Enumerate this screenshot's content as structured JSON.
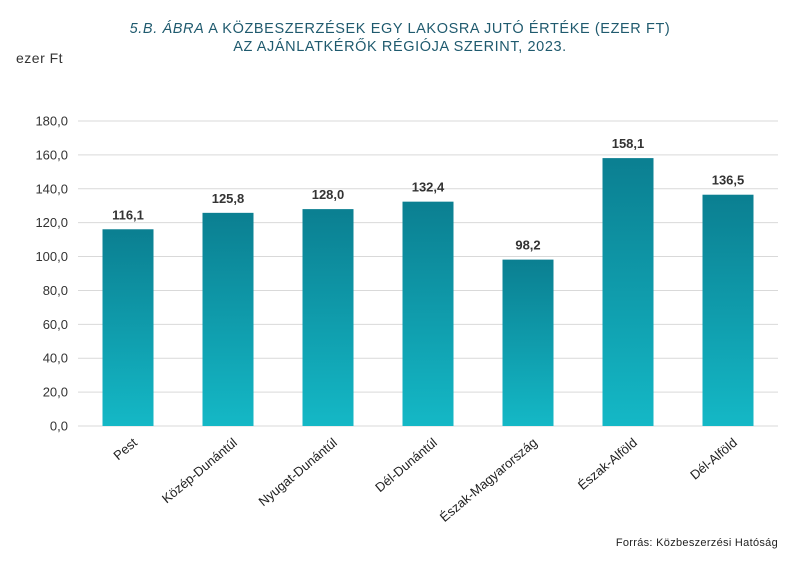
{
  "title": {
    "figure": "5.B. ÁBRA",
    "line1": "A KÖZBESZERZÉSEK EGY LAKOSRA JUTÓ ÉRTÉKE (EZER FT)",
    "line2": "AZ AJÁNLATKÉRŐK RÉGIÓJA SZERINT, 2023."
  },
  "unit_label": "ezer Ft",
  "source": "Forrás: Közbeszerzési  Hatóság",
  "colors": {
    "bar_top": "#0b7f91",
    "bar_bottom": "#14b8c6",
    "grid": "#d9d9d9",
    "title": "#1f5a6e"
  },
  "chart_data": {
    "type": "bar",
    "categories": [
      "Pest",
      "Közép-Dunántúl",
      "Nyugat-Dunántúl",
      "Dél-Dunántúl",
      "Észak-Magyarország",
      "Észak-Alföld",
      "Dél-Alföld"
    ],
    "values": [
      116.1,
      125.8,
      128.0,
      132.4,
      98.2,
      158.1,
      136.5
    ],
    "value_labels": [
      "116,1",
      "125,8",
      "128,0",
      "132,4",
      "98,2",
      "158,1",
      "136,5"
    ],
    "yticks": [
      "0,0",
      "20,0",
      "40,0",
      "60,0",
      "80,0",
      "100,0",
      "120,0",
      "140,0",
      "160,0",
      "180,0"
    ],
    "ylim": [
      0,
      180
    ],
    "ylabel": "ezer Ft",
    "grid": true,
    "legend": "none"
  }
}
